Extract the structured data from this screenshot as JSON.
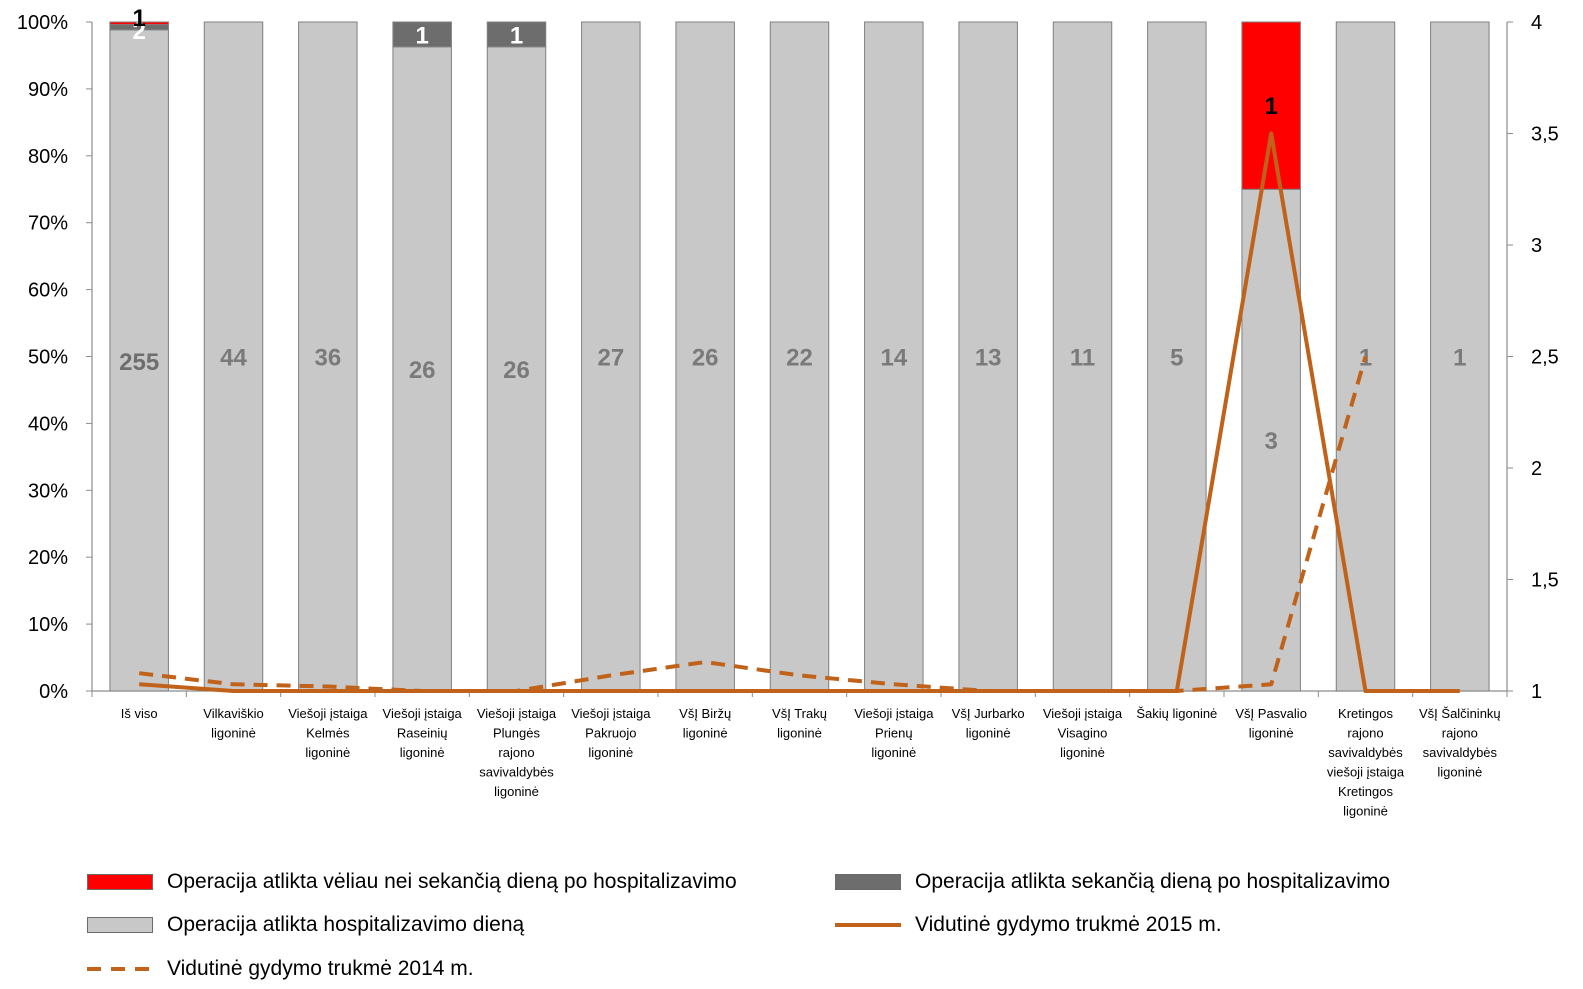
{
  "chart_data": {
    "type": "bar",
    "stacked": "percent",
    "categories": [
      [
        "Iš viso"
      ],
      [
        "Vilkaviškio",
        "ligoninė"
      ],
      [
        "Viešoji įstaiga",
        "Kelmės",
        "ligoninė"
      ],
      [
        "Viešoji įstaiga",
        "Raseinių",
        "ligoninė"
      ],
      [
        "Viešoji įstaiga",
        "Plungės",
        "rajono",
        "savivaldybės",
        "ligoninė"
      ],
      [
        "Viešoji įstaiga",
        "Pakruojo",
        "ligoninė"
      ],
      [
        "VšĮ Biržų",
        "ligoninė"
      ],
      [
        "VšĮ Trakų",
        "ligoninė"
      ],
      [
        "Viešoji įstaiga",
        "Prienų",
        "ligoninė"
      ],
      [
        "VšĮ Jurbarko",
        "ligoninė"
      ],
      [
        "Viešoji įstaiga",
        "Visagino",
        "ligoninė"
      ],
      [
        "Šakių ligoninė"
      ],
      [
        "VšĮ Pasvalio",
        "ligoninė"
      ],
      [
        "Kretingos",
        "rajono",
        "savivaldybės",
        "viešoji įstaiga",
        "Kretingos",
        "ligoninė"
      ],
      [
        "VšĮ Šalčininkų",
        "rajono",
        "savivaldybės",
        "ligoninė"
      ]
    ],
    "series": [
      {
        "name": "Operacija atlikta hospitalizavimo dieną",
        "kind": "bar",
        "color": "#c8c8c8",
        "values": [
          255,
          44,
          36,
          26,
          26,
          27,
          26,
          22,
          14,
          13,
          11,
          5,
          3,
          1,
          1
        ],
        "labels": [
          "255",
          "44",
          "36",
          "26",
          "26",
          "27",
          "26",
          "22",
          "14",
          "13",
          "11",
          "5",
          "3",
          "1",
          "1"
        ]
      },
      {
        "name": "Operacija atlikta sekančią dieną po hospitalizavimo",
        "kind": "bar",
        "color": "#6d6d6d",
        "values": [
          2,
          0,
          0,
          1,
          1,
          0,
          0,
          0,
          0,
          0,
          0,
          0,
          0,
          0,
          0
        ],
        "labels": [
          "2",
          "",
          "",
          "1",
          "1",
          "",
          "",
          "",
          "",
          "",
          "",
          "",
          "",
          "",
          ""
        ]
      },
      {
        "name": "Operacija atlikta vėliau nei sekančią dieną po hospitalizavimo",
        "kind": "bar",
        "color": "#ff0000",
        "values": [
          1,
          0,
          0,
          0,
          0,
          0,
          0,
          0,
          0,
          0,
          0,
          0,
          1,
          0,
          0
        ],
        "labels": [
          "1",
          "",
          "",
          "",
          "",
          "",
          "",
          "",
          "",
          "",
          "",
          "",
          "1",
          "",
          ""
        ]
      },
      {
        "name": "Vidutinė gydymo trukmė 2015 m.",
        "kind": "line",
        "axis": "right",
        "color": "#c0621a",
        "dash": false,
        "values": [
          1.03,
          1.0,
          1.0,
          1.0,
          1.0,
          1.0,
          1.0,
          1.0,
          1.0,
          1.0,
          1.0,
          1.0,
          3.5,
          1.0,
          1.0
        ]
      },
      {
        "name": "Vidutinė gydymo trukmė 2014 m.",
        "kind": "line",
        "axis": "right",
        "color": "#c0621a",
        "dash": true,
        "values": [
          1.08,
          1.03,
          1.02,
          1.0,
          1.0,
          1.07,
          1.13,
          1.07,
          1.03,
          1.0,
          1.0,
          1.0,
          1.03,
          2.5,
          null
        ]
      }
    ],
    "y_left": {
      "min": 0,
      "max": 100,
      "ticks": [
        "0%",
        "10%",
        "20%",
        "30%",
        "40%",
        "50%",
        "60%",
        "70%",
        "80%",
        "90%",
        "100%"
      ]
    },
    "y_right": {
      "min": 1,
      "max": 4,
      "ticks": [
        "1",
        "1,5",
        "2",
        "2,5",
        "3",
        "3,5",
        "4"
      ]
    },
    "grid": false,
    "legend": "bottom",
    "title": "",
    "xlabel": "",
    "ylabel": ""
  },
  "legend_items": [
    {
      "key": "late",
      "label": "Operacija atlikta vėliau nei sekančią dieną po hospitalizavimo"
    },
    {
      "key": "next",
      "label": "Operacija atlikta sekančią dieną po hospitalizavimo"
    },
    {
      "key": "same",
      "label": "Operacija atlikta hospitalizavimo dieną"
    },
    {
      "key": "l2015",
      "label": "Vidutinė gydymo trukmė 2015 m."
    },
    {
      "key": "l2014",
      "label": "Vidutinė gydymo trukmė 2014 m."
    }
  ]
}
